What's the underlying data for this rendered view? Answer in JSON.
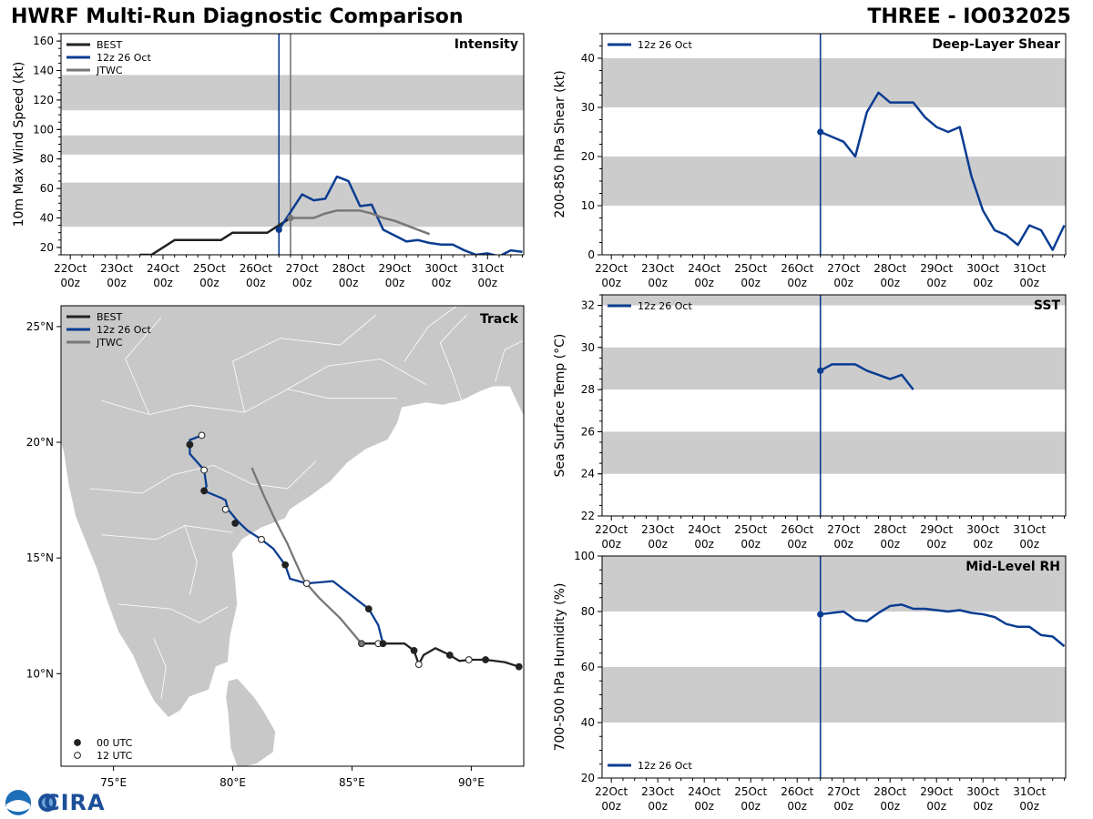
{
  "page": {
    "title_left": "HWRF Multi-Run Diagnostic Comparison",
    "title_right": "THREE - IO032025",
    "logo_text": "CIRA"
  },
  "colors": {
    "best": "#222222",
    "run": "#0a3d91",
    "jtwc": "#777777",
    "band": "#cccccc",
    "land": "#c8c8c8"
  },
  "chart_data": [
    {
      "id": "intensity",
      "type": "line",
      "title": "Intensity",
      "ylabel": "10m Max Wind Speed (kt)",
      "ylim": [
        15,
        165
      ],
      "yticks": [
        20,
        40,
        60,
        80,
        100,
        120,
        140,
        160
      ],
      "xlim": [
        21.8,
        31.78
      ],
      "xticks": [
        22,
        23,
        24,
        25,
        26,
        27,
        28,
        29,
        30,
        31
      ],
      "xticklabels": [
        "22Oct\n00z",
        "23Oct\n00z",
        "24Oct\n00z",
        "25Oct\n00z",
        "26Oct\n00z",
        "27Oct\n00z",
        "28Oct\n00z",
        "29Oct\n00z",
        "30Oct\n00z",
        "31Oct\n00z"
      ],
      "bands": [
        [
          34,
          64
        ],
        [
          83,
          96
        ],
        [
          113,
          137
        ]
      ],
      "vlines": [
        {
          "x": 26.5,
          "series": "run"
        },
        {
          "x": 26.75,
          "series": "jtwc"
        }
      ],
      "legend": [
        "BEST",
        "12z 26 Oct",
        "JTWC"
      ],
      "series": [
        {
          "name": "BEST",
          "key": "best",
          "x": [
            23.5,
            23.75,
            24.0,
            24.25,
            24.5,
            24.75,
            25.0,
            25.25,
            25.5,
            25.75,
            26.0,
            26.25,
            26.5,
            26.75
          ],
          "y": [
            15,
            15,
            20,
            25,
            25,
            25,
            25,
            25,
            30,
            30,
            30,
            30,
            35,
            40
          ]
        },
        {
          "name": "12z 26 Oct",
          "key": "run",
          "x": [
            26.5,
            26.75,
            27.0,
            27.25,
            27.5,
            27.75,
            28.0,
            28.25,
            28.5,
            28.75,
            29.0,
            29.25,
            29.5,
            29.75,
            30.0,
            30.25,
            30.5,
            30.75,
            31.0,
            31.25,
            31.5,
            31.75
          ],
          "y": [
            32,
            44,
            56,
            52,
            53,
            68,
            65,
            48,
            49,
            32,
            28,
            24,
            25,
            23,
            22,
            22,
            18,
            15,
            16,
            14,
            18,
            17
          ]
        },
        {
          "name": "JTWC",
          "key": "jtwc",
          "x": [
            26.75,
            27.0,
            27.25,
            27.5,
            27.75,
            28.0,
            28.25,
            28.5,
            28.75,
            29.0,
            29.25,
            29.5,
            29.75
          ],
          "y": [
            40,
            40,
            40,
            43,
            45,
            45,
            45,
            43,
            40,
            38,
            35,
            32,
            29
          ]
        }
      ],
      "markers": [
        {
          "key": "run",
          "x": 26.5,
          "y": 32
        },
        {
          "key": "jtwc",
          "x": 26.75,
          "y": 40
        }
      ]
    },
    {
      "id": "shear",
      "type": "line",
      "title": "Deep-Layer Shear",
      "ylabel": "200-850 hPa Shear (kt)",
      "ylim": [
        0,
        45
      ],
      "yticks": [
        0,
        10,
        20,
        30,
        40
      ],
      "xlim": [
        21.8,
        31.78
      ],
      "xticks": [
        22,
        23,
        24,
        25,
        26,
        27,
        28,
        29,
        30,
        31
      ],
      "xticklabels": [
        "22Oct\n00z",
        "23Oct\n00z",
        "24Oct\n00z",
        "25Oct\n00z",
        "26Oct\n00z",
        "27Oct\n00z",
        "28Oct\n00z",
        "29Oct\n00z",
        "30Oct\n00z",
        "31Oct\n00z"
      ],
      "bands": [
        [
          10,
          20
        ],
        [
          30,
          40
        ]
      ],
      "vlines": [
        {
          "x": 26.5,
          "series": "run"
        }
      ],
      "legend": [
        "12z 26 Oct"
      ],
      "series": [
        {
          "name": "12z 26 Oct",
          "key": "run",
          "x": [
            26.5,
            26.75,
            27.0,
            27.25,
            27.5,
            27.75,
            28.0,
            28.25,
            28.5,
            28.75,
            29.0,
            29.25,
            29.5,
            29.75,
            30.0,
            30.25,
            30.5,
            30.75,
            31.0,
            31.25,
            31.5,
            31.75
          ],
          "y": [
            25,
            24,
            23,
            20,
            29,
            33,
            31,
            31,
            31,
            28,
            26,
            25,
            26,
            16,
            9,
            5,
            4,
            2,
            6,
            5,
            1,
            6
          ]
        }
      ],
      "markers": [
        {
          "key": "run",
          "x": 26.5,
          "y": 25
        }
      ]
    },
    {
      "id": "sst",
      "type": "line",
      "title": "SST",
      "ylabel": "Sea Surface Temp (°C)",
      "ylim": [
        22,
        32.5
      ],
      "yticks": [
        22,
        24,
        26,
        28,
        30,
        32
      ],
      "xlim": [
        21.8,
        31.78
      ],
      "xticks": [
        22,
        23,
        24,
        25,
        26,
        27,
        28,
        29,
        30,
        31
      ],
      "xticklabels": [
        "22Oct\n00z",
        "23Oct\n00z",
        "24Oct\n00z",
        "25Oct\n00z",
        "26Oct\n00z",
        "27Oct\n00z",
        "28Oct\n00z",
        "29Oct\n00z",
        "30Oct\n00z",
        "31Oct\n00z"
      ],
      "bands": [
        [
          24,
          26
        ],
        [
          28,
          30
        ],
        [
          32,
          34
        ]
      ],
      "vlines": [
        {
          "x": 26.5,
          "series": "run"
        }
      ],
      "legend": [
        "12z 26 Oct"
      ],
      "series": [
        {
          "name": "12z 26 Oct",
          "key": "run",
          "x": [
            26.5,
            26.75,
            27.0,
            27.25,
            27.5,
            27.75,
            28.0,
            28.25,
            28.5
          ],
          "y": [
            28.9,
            29.2,
            29.2,
            29.2,
            28.9,
            28.7,
            28.5,
            28.7,
            28.0
          ]
        }
      ],
      "markers": [
        {
          "key": "run",
          "x": 26.5,
          "y": 28.9
        }
      ]
    },
    {
      "id": "rh",
      "type": "line",
      "title": "Mid-Level RH",
      "ylabel": "700-500 hPa Humidity (%)",
      "ylim": [
        20,
        100
      ],
      "yticks": [
        20,
        40,
        60,
        80,
        100
      ],
      "xlim": [
        21.8,
        31.78
      ],
      "xticks": [
        22,
        23,
        24,
        25,
        26,
        27,
        28,
        29,
        30,
        31
      ],
      "xticklabels": [
        "22Oct\n00z",
        "23Oct\n00z",
        "24Oct\n00z",
        "25Oct\n00z",
        "26Oct\n00z",
        "27Oct\n00z",
        "28Oct\n00z",
        "29Oct\n00z",
        "30Oct\n00z",
        "31Oct\n00z"
      ],
      "bands": [
        [
          40,
          60
        ],
        [
          80,
          100
        ]
      ],
      "vlines": [
        {
          "x": 26.5,
          "series": "run"
        }
      ],
      "legend": [
        "12z 26 Oct"
      ],
      "series": [
        {
          "name": "12z 26 Oct",
          "key": "run",
          "x": [
            26.5,
            26.75,
            27.0,
            27.25,
            27.5,
            27.75,
            28.0,
            28.25,
            28.5,
            28.75,
            29.0,
            29.25,
            29.5,
            29.75,
            30.0,
            30.25,
            30.5,
            30.75,
            31.0,
            31.25,
            31.5,
            31.75
          ],
          "y": [
            79,
            79.5,
            80,
            77,
            76.5,
            79.5,
            82,
            82.5,
            81,
            81,
            80.5,
            80,
            80.5,
            79.5,
            79,
            78,
            75.5,
            74.5,
            74.5,
            71.5,
            71,
            67.5
          ]
        }
      ],
      "markers": [
        {
          "key": "run",
          "x": 26.5,
          "y": 79
        }
      ]
    },
    {
      "id": "track",
      "type": "scatter",
      "title": "Track",
      "xlim": [
        72.8,
        92.2
      ],
      "ylim": [
        6.0,
        25.9
      ],
      "xticks": [
        75,
        80,
        85,
        90
      ],
      "xticklabels": [
        "75°E",
        "80°E",
        "85°E",
        "90°E"
      ],
      "yticks": [
        10,
        15,
        20,
        25
      ],
      "yticklabels": [
        "10°N",
        "15°N",
        "20°N",
        "25°N"
      ],
      "legend": [
        "BEST",
        "12z 26 Oct",
        "JTWC"
      ],
      "marker_legend": [
        "00 UTC",
        "12 UTC"
      ],
      "series": [
        {
          "name": "BEST",
          "key": "best",
          "lon": [
            92.0,
            91.4,
            90.6,
            90.0,
            89.5,
            89.1,
            88.5,
            88.0,
            87.8,
            87.6,
            87.2,
            86.3,
            86.0,
            85.7,
            85.4
          ],
          "lat": [
            10.3,
            10.5,
            10.6,
            10.6,
            10.55,
            10.8,
            11.1,
            10.8,
            10.4,
            11.0,
            11.3,
            11.3,
            11.3,
            11.3,
            11.3
          ]
        },
        {
          "name": "12z 26 Oct",
          "key": "run",
          "lon": [
            86.3,
            86.1,
            85.7,
            84.2,
            83.1,
            82.4,
            82.2,
            81.7,
            81.2,
            80.6,
            80.2,
            79.8,
            79.7,
            79.5,
            78.8,
            78.9,
            78.8,
            78.2,
            78.2,
            78.7
          ],
          "lat": [
            11.3,
            12.1,
            12.8,
            14.0,
            13.9,
            14.1,
            14.7,
            15.4,
            15.8,
            16.2,
            16.6,
            17.1,
            17.5,
            17.6,
            17.9,
            18.1,
            18.8,
            19.5,
            20.1,
            20.3
          ]
        },
        {
          "name": "JTWC",
          "key": "jtwc",
          "lon": [
            85.4,
            84.5,
            83.6,
            83.0,
            82.6,
            82.3,
            81.8,
            81.3,
            80.8
          ],
          "lat": [
            11.3,
            12.4,
            13.3,
            14.0,
            14.9,
            15.6,
            16.6,
            17.7,
            18.9
          ]
        }
      ],
      "points": [
        {
          "lon": 92.0,
          "lat": 10.3,
          "t": "00",
          "key": "best"
        },
        {
          "lon": 90.6,
          "lat": 10.6,
          "t": "00",
          "key": "best"
        },
        {
          "lon": 89.9,
          "lat": 10.6,
          "t": "12",
          "key": "best"
        },
        {
          "lon": 89.1,
          "lat": 10.8,
          "t": "00",
          "key": "best"
        },
        {
          "lon": 87.8,
          "lat": 10.4,
          "t": "12",
          "key": "best"
        },
        {
          "lon": 87.6,
          "lat": 11.0,
          "t": "00",
          "key": "best"
        },
        {
          "lon": 86.1,
          "lat": 11.3,
          "t": "12",
          "key": "best"
        },
        {
          "lon": 86.3,
          "lat": 11.3,
          "t": "00",
          "key": "run"
        },
        {
          "lon": 85.7,
          "lat": 12.8,
          "t": "00",
          "key": "run"
        },
        {
          "lon": 83.1,
          "lat": 13.9,
          "t": "12",
          "key": "run"
        },
        {
          "lon": 82.2,
          "lat": 14.7,
          "t": "00",
          "key": "run"
        },
        {
          "lon": 81.2,
          "lat": 15.8,
          "t": "12",
          "key": "run"
        },
        {
          "lon": 80.1,
          "lat": 16.5,
          "t": "00",
          "key": "run"
        },
        {
          "lon": 79.7,
          "lat": 17.1,
          "t": "12",
          "key": "run"
        },
        {
          "lon": 78.8,
          "lat": 17.9,
          "t": "00",
          "key": "run"
        },
        {
          "lon": 78.8,
          "lat": 18.8,
          "t": "12",
          "key": "run"
        },
        {
          "lon": 78.2,
          "lat": 19.9,
          "t": "00",
          "key": "run"
        },
        {
          "lon": 78.7,
          "lat": 20.3,
          "t": "12",
          "key": "run"
        },
        {
          "lon": 85.4,
          "lat": 11.3,
          "t": "00",
          "key": "jtwc"
        }
      ]
    }
  ]
}
